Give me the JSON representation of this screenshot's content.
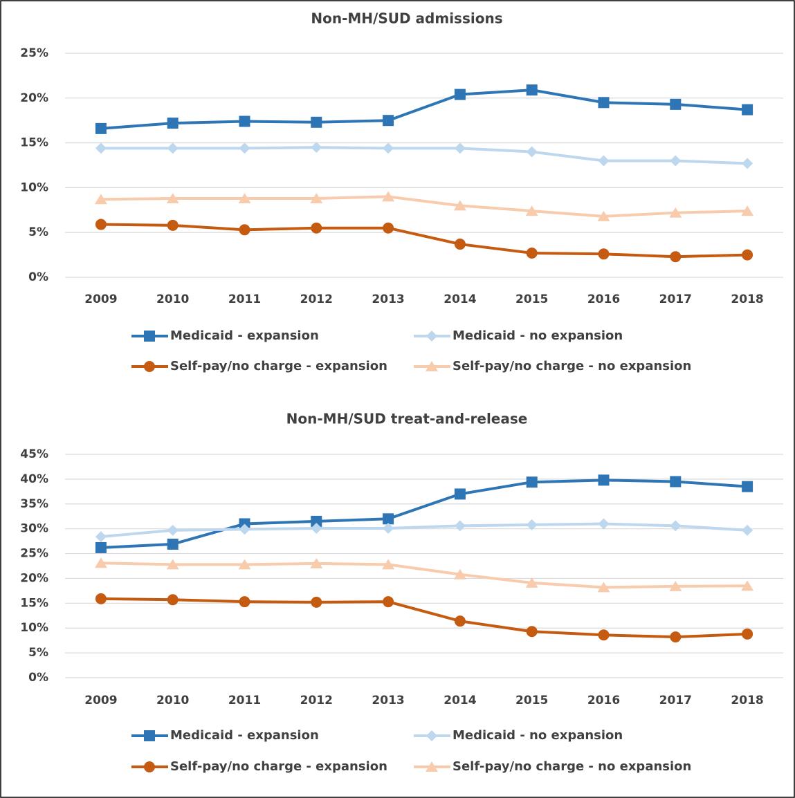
{
  "chart_data": [
    {
      "type": "line",
      "title": "Non-MH/SUD admissions",
      "categories": [
        "2009",
        "2010",
        "2011",
        "2012",
        "2013",
        "2014",
        "2015",
        "2016",
        "2017",
        "2018"
      ],
      "ylim": [
        0,
        25
      ],
      "yticks": [
        {
          "value": 0,
          "label": "0%"
        },
        {
          "value": 5,
          "label": "5%"
        },
        {
          "value": 10,
          "label": "10%"
        },
        {
          "value": 15,
          "label": "15%"
        },
        {
          "value": 20,
          "label": "20%"
        },
        {
          "value": 25,
          "label": "25%"
        }
      ],
      "grid": true,
      "series": [
        {
          "name": "Medicaid - expansion",
          "color": "#2e75b6",
          "marker": "square",
          "values": [
            16.6,
            17.2,
            17.4,
            17.3,
            17.5,
            20.4,
            20.9,
            19.5,
            19.3,
            18.7
          ]
        },
        {
          "name": "Medicaid - no expansion",
          "color": "#bdd7ee",
          "marker": "diamond",
          "values": [
            14.4,
            14.4,
            14.4,
            14.5,
            14.4,
            14.4,
            14.0,
            13.0,
            13.0,
            12.7
          ]
        },
        {
          "name": "Self-pay/no charge - expansion",
          "color": "#c55a11",
          "marker": "circle",
          "values": [
            5.9,
            5.8,
            5.3,
            5.5,
            5.5,
            3.7,
            2.7,
            2.6,
            2.3,
            2.5
          ]
        },
        {
          "name": "Self-pay/no charge - no expansion",
          "color": "#f8cbad",
          "marker": "triangle",
          "values": [
            8.7,
            8.8,
            8.8,
            8.8,
            9.0,
            8.0,
            7.4,
            6.8,
            7.2,
            7.4
          ]
        }
      ]
    },
    {
      "type": "line",
      "title": "Non-MH/SUD treat-and-release",
      "categories": [
        "2009",
        "2010",
        "2011",
        "2012",
        "2013",
        "2014",
        "2015",
        "2016",
        "2017",
        "2018"
      ],
      "ylim": [
        0,
        45
      ],
      "yticks": [
        {
          "value": 0,
          "label": "0%"
        },
        {
          "value": 5,
          "label": "5%"
        },
        {
          "value": 10,
          "label": "10%"
        },
        {
          "value": 15,
          "label": "15%"
        },
        {
          "value": 20,
          "label": "20%"
        },
        {
          "value": 25,
          "label": "25%"
        },
        {
          "value": 30,
          "label": "30%"
        },
        {
          "value": 35,
          "label": "35%"
        },
        {
          "value": 40,
          "label": "40%"
        },
        {
          "value": 45,
          "label": "45%"
        }
      ],
      "grid": true,
      "series": [
        {
          "name": "Medicaid - expansion",
          "color": "#2e75b6",
          "marker": "square",
          "values": [
            26.2,
            26.9,
            31.0,
            31.5,
            32.0,
            37.0,
            39.4,
            39.8,
            39.5,
            38.5
          ]
        },
        {
          "name": "Medicaid - no expansion",
          "color": "#bdd7ee",
          "marker": "diamond",
          "values": [
            28.4,
            29.7,
            29.9,
            30.1,
            30.1,
            30.6,
            30.8,
            31.0,
            30.6,
            29.7
          ]
        },
        {
          "name": "Self-pay/no charge - expansion",
          "color": "#c55a11",
          "marker": "circle",
          "values": [
            15.9,
            15.7,
            15.3,
            15.2,
            15.3,
            11.4,
            9.3,
            8.6,
            8.2,
            8.8
          ]
        },
        {
          "name": "Self-pay/no charge - no expansion",
          "color": "#f8cbad",
          "marker": "triangle",
          "values": [
            23.1,
            22.8,
            22.8,
            23.0,
            22.8,
            20.8,
            19.1,
            18.2,
            18.4,
            18.5
          ]
        }
      ]
    }
  ]
}
